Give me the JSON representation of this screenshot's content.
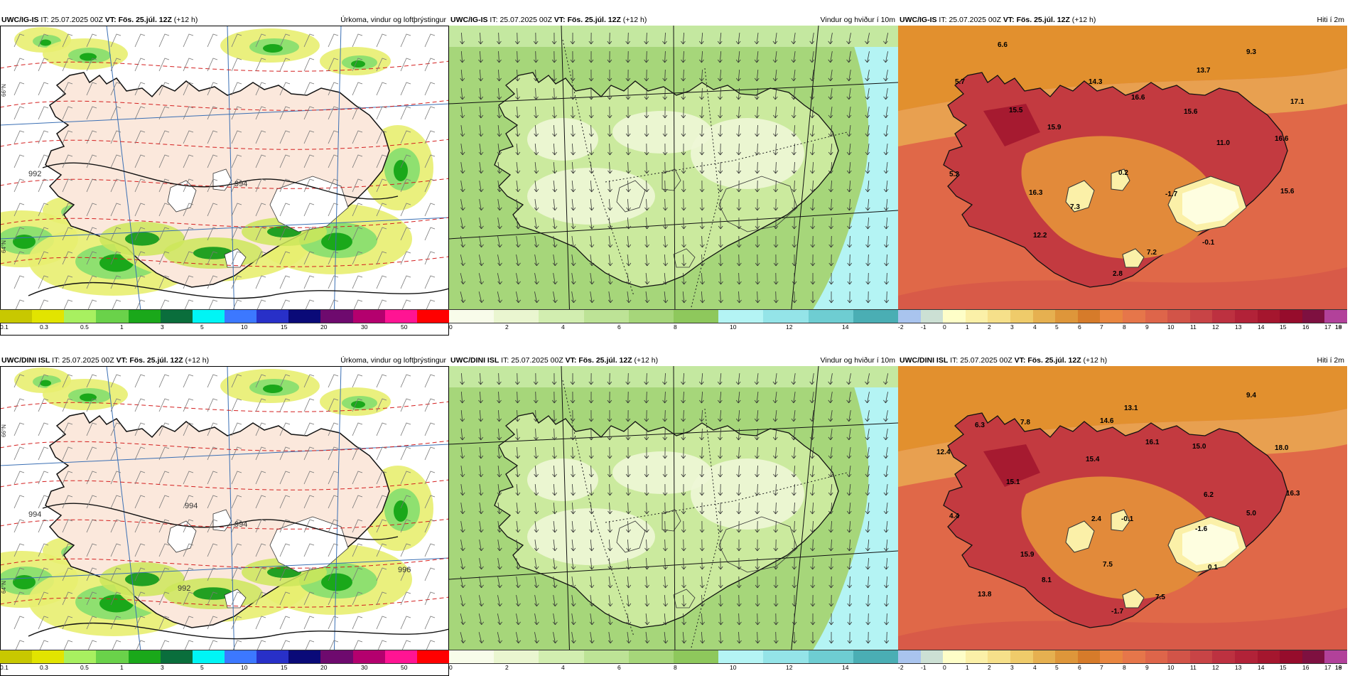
{
  "panels": [
    {
      "id": "p1",
      "model": "UWC/IG-IS",
      "it_label": "IT:",
      "it_value": "25.07.2025 00Z",
      "vt_label": "VT:",
      "vt_value": "Fös. 25.júl. 12Z",
      "lead": "(+12 h)",
      "title": "Úrkoma, vindur og loftþrýstingur",
      "scale": "precip"
    },
    {
      "id": "p2",
      "model": "UWC/IG-IS",
      "it_label": "IT:",
      "it_value": "25.07.2025 00Z",
      "vt_label": "VT:",
      "vt_value": "Fös. 25.júl. 12Z",
      "lead": "(+12 h)",
      "title": "Vindur og hviður í 10m",
      "scale": "wind"
    },
    {
      "id": "p3",
      "model": "UWC/IG-IS",
      "it_label": "IT:",
      "it_value": "25.07.2025 00Z",
      "vt_label": "VT:",
      "vt_value": "Fös. 25.júl. 12Z",
      "lead": "(+12 h)",
      "title": "Hiti í 2m",
      "scale": "temp"
    },
    {
      "id": "p4",
      "model": "UWC/DINI ISL",
      "it_label": "IT:",
      "it_value": "25.07.2025 00Z",
      "vt_label": "VT:",
      "vt_value": "Fös. 25.júl. 12Z",
      "lead": "(+12 h)",
      "title": "Úrkoma, vindur og loftþrýstingur",
      "scale": "precip"
    },
    {
      "id": "p5",
      "model": "UWC/DINI ISL",
      "it_label": "IT:",
      "it_value": "25.07.2025 00Z",
      "vt_label": "VT:",
      "vt_value": "Fös. 25.júl. 12Z",
      "lead": "(+12 h)",
      "title": "Vindur og hviður í 10m",
      "scale": "wind"
    },
    {
      "id": "p6",
      "model": "UWC/DINI ISL",
      "it_label": "IT:",
      "it_value": "25.07.2025 00Z",
      "vt_label": "VT:",
      "vt_value": "Fös. 25.júl. 12Z",
      "lead": "(+12 h)",
      "title": "Hiti í 2m",
      "scale": "temp"
    }
  ],
  "scales": {
    "precip": {
      "colors": [
        "#c8c800",
        "#e2e400",
        "#a8f060",
        "#6ad24a",
        "#1aa81a",
        "#0a6e3c",
        "#00f5f5",
        "#3c78ff",
        "#2830c8",
        "#0a0a78",
        "#6e0a6e",
        "#b4006e",
        "#ff1493",
        "#ff0000"
      ],
      "ticks": [
        "0.1",
        "0.3",
        "0.5",
        "1",
        "3",
        "5",
        "10",
        "15",
        "20",
        "30",
        "50"
      ]
    },
    "wind": {
      "colors": [
        "#f8fcea",
        "#eaf6d0",
        "#d2eeb0",
        "#bde396",
        "#a6d67a",
        "#8ec85c",
        "#b4f4f4",
        "#94e4e8",
        "#6ecdd2",
        "#4aaeb4"
      ],
      "ticks": [
        "0",
        "2",
        "4",
        "6",
        "8",
        "10",
        "12",
        "14"
      ]
    },
    "temp": {
      "colors": [
        "#a9c4ee",
        "#cce0d4",
        "#fefec8",
        "#fbf0a8",
        "#f6e08a",
        "#efcb6a",
        "#e6b050",
        "#de963a",
        "#d67b2a",
        "#e98640",
        "#e6764a",
        "#de654a",
        "#d25448",
        "#c84446",
        "#bd3140",
        "#b22238",
        "#a5162e",
        "#960c2c",
        "#7e1040",
        "#b2419a"
      ],
      "ticks": [
        "-2",
        "-1",
        "0",
        "1",
        "2",
        "3",
        "4",
        "5",
        "6",
        "7",
        "8",
        "9",
        "10",
        "11",
        "12",
        "13",
        "14",
        "15",
        "16",
        "17",
        "18",
        "19"
      ]
    }
  },
  "temp_labels": {
    "p3": [
      "6.6",
      "9.3",
      "5.7",
      "13.7",
      "14.3",
      "16.6",
      "15.5",
      "15.6",
      "17.1",
      "15.9",
      "11.0",
      "16.6",
      "5.2",
      "0.2",
      "16.3",
      "-1.7",
      "15.6",
      "7.3",
      "12.2",
      "-0.1",
      "7.2",
      "2.8"
    ],
    "p6": [
      "9.4",
      "6.3",
      "7.8",
      "13.1",
      "14.6",
      "16.1",
      "12.4",
      "15.4",
      "15.0",
      "18.0",
      "15.1",
      "6.2",
      "16.3",
      "4.4",
      "2.4",
      "-0.1",
      "5.0",
      "-1.6",
      "15.9",
      "7.5",
      "0.1",
      "8.1",
      "13.8",
      "7.5",
      "-1.7"
    ]
  },
  "isobar_labels": {
    "p1": [
      "992",
      "994"
    ],
    "p4": [
      "994",
      "994",
      "992",
      "994",
      "996"
    ]
  },
  "lat_labels": [
    "66°N",
    "64°N"
  ]
}
